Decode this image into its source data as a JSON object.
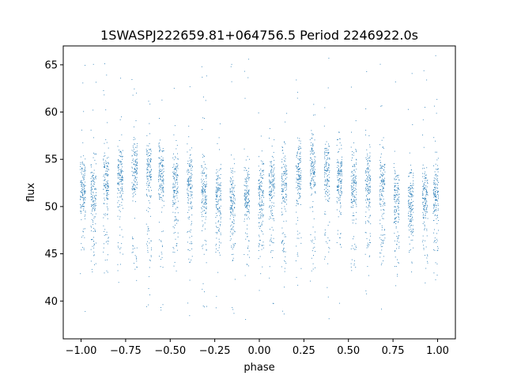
{
  "chart_data": {
    "type": "scatter",
    "title": "1SWASPJ222659.81+064756.5 Period 2246922.0s",
    "xlabel": "phase",
    "ylabel": "flux",
    "xlim": [
      -1.1,
      1.1
    ],
    "ylim": [
      36,
      67
    ],
    "xticks": [
      -1.0,
      -0.75,
      -0.5,
      -0.25,
      0.0,
      0.25,
      0.5,
      0.75,
      1.0
    ],
    "xtick_labels": [
      "−1.00",
      "−0.75",
      "−0.50",
      "−0.25",
      "0.00",
      "0.25",
      "0.50",
      "0.75",
      "1.00"
    ],
    "yticks": [
      40,
      45,
      50,
      55,
      60,
      65
    ],
    "ytick_labels": [
      "40",
      "45",
      "50",
      "55",
      "60",
      "65"
    ],
    "grid": false,
    "marker_color": "#1f77b4",
    "series": [
      {
        "description_points": [
          {
            "x": -0.99,
            "y": 52
          },
          {
            "x": -0.93,
            "y": 51.5
          },
          {
            "x": -0.86,
            "y": 52.5
          },
          {
            "x": -0.78,
            "y": 53
          },
          {
            "x": -0.7,
            "y": 54
          },
          {
            "x": -0.62,
            "y": 53.5
          },
          {
            "x": -0.55,
            "y": 53
          },
          {
            "x": -0.47,
            "y": 52.5
          },
          {
            "x": -0.39,
            "y": 52.5
          },
          {
            "x": -0.31,
            "y": 52
          },
          {
            "x": -0.23,
            "y": 51
          },
          {
            "x": -0.15,
            "y": 50.5
          },
          {
            "x": -0.07,
            "y": 51
          },
          {
            "x": 0.01,
            "y": 51.5
          },
          {
            "x": 0.07,
            "y": 52
          },
          {
            "x": 0.14,
            "y": 52.5
          },
          {
            "x": 0.22,
            "y": 53
          },
          {
            "x": 0.3,
            "y": 54
          },
          {
            "x": 0.38,
            "y": 53.5
          },
          {
            "x": 0.45,
            "y": 53
          },
          {
            "x": 0.53,
            "y": 52.5
          },
          {
            "x": 0.61,
            "y": 52.5
          },
          {
            "x": 0.69,
            "y": 52
          },
          {
            "x": 0.77,
            "y": 51
          },
          {
            "x": 0.85,
            "y": 50.5
          },
          {
            "x": 0.93,
            "y": 51
          },
          {
            "x": 0.99,
            "y": 51.5
          }
        ]
      }
    ]
  }
}
